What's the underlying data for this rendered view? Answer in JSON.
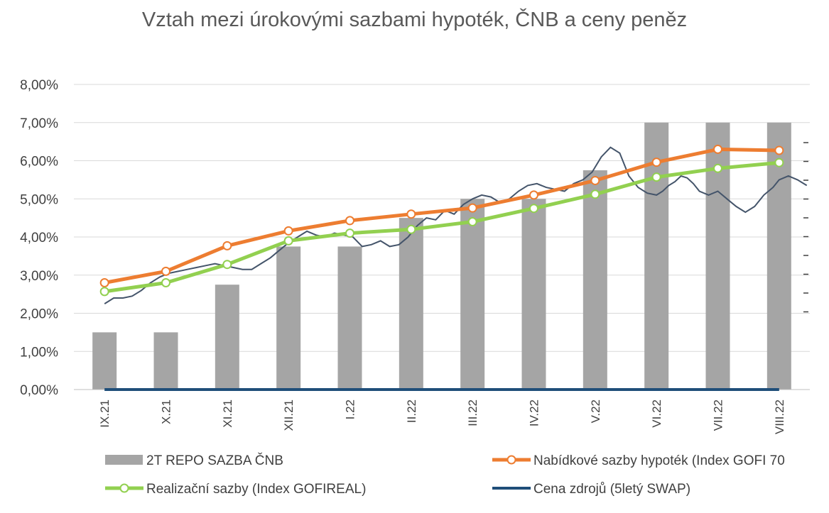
{
  "chart_data": {
    "type": "bar",
    "title": "Vztah mezi úrokovými sazbami hypoték, ČNB a ceny peněz",
    "categories": [
      "IX.21",
      "X.21",
      "XI.21",
      "XII.21",
      "I.22",
      "II.22",
      "III.22",
      "IV.22",
      "V.22",
      "VI.22",
      "VII.22",
      "VIII.22"
    ],
    "ylim": [
      0,
      8
    ],
    "yticks": [
      "0,00%",
      "1,00%",
      "2,00%",
      "3,00%",
      "4,00%",
      "5,00%",
      "6,00%",
      "7,00%",
      "8,00%"
    ],
    "grid": true,
    "legend_position": "bottom",
    "series": [
      {
        "name": "2T REPO SAZBA ČNB",
        "type": "bar",
        "color": "#a5a5a5",
        "values": [
          1.5,
          1.5,
          2.75,
          3.75,
          3.75,
          4.5,
          5.0,
          5.0,
          5.75,
          7.0,
          7.0,
          7.0
        ]
      },
      {
        "name": "Nabídkové sazby hypoték (Index GOFI 70",
        "type": "line",
        "color": "#ed7d31",
        "values": [
          2.8,
          3.1,
          3.77,
          4.16,
          4.43,
          4.6,
          4.76,
          5.1,
          5.48,
          5.96,
          6.3,
          6.27
        ]
      },
      {
        "name": "Realizační sazby (Index GOFIREAL)",
        "type": "line",
        "color": "#92d050",
        "values": [
          2.57,
          2.8,
          3.28,
          3.9,
          4.1,
          4.2,
          4.4,
          4.75,
          5.12,
          5.57,
          5.8,
          5.95
        ]
      },
      {
        "name": "Cena zdrojů (5letý SWAP)",
        "type": "line",
        "color": "#1f4e79",
        "values": [
          0,
          0,
          0,
          0,
          0,
          0,
          0,
          0,
          0,
          0,
          0,
          0
        ]
      },
      {
        "name": "",
        "type": "daily-line",
        "color": "#44546a",
        "x": [
          0,
          0.15,
          0.3,
          0.45,
          0.6,
          0.75,
          0.9,
          1.05,
          1.2,
          1.35,
          1.5,
          1.65,
          1.8,
          1.95,
          2.1,
          2.25,
          2.4,
          2.55,
          2.7,
          2.85,
          3.0,
          3.15,
          3.3,
          3.45,
          3.6,
          3.75,
          3.9,
          4.05,
          4.2,
          4.35,
          4.5,
          4.65,
          4.8,
          4.95,
          5.1,
          5.25,
          5.4,
          5.55,
          5.7,
          5.85,
          6.0,
          6.15,
          6.3,
          6.45,
          6.6,
          6.75,
          6.9,
          7.05,
          7.2,
          7.35,
          7.5,
          7.65,
          7.8,
          7.95,
          8.1,
          8.25,
          8.4,
          8.55,
          8.7,
          8.85,
          9.0,
          9.1,
          9.2,
          9.3,
          9.4,
          9.5,
          9.6,
          9.7,
          9.85,
          10.0,
          10.15,
          10.3,
          10.45,
          10.6,
          10.75,
          10.9,
          11.0,
          11.15,
          11.3,
          11.45
        ],
        "values": [
          2.25,
          2.4,
          2.4,
          2.45,
          2.6,
          2.8,
          2.95,
          3.05,
          3.1,
          3.15,
          3.2,
          3.25,
          3.3,
          3.25,
          3.2,
          3.15,
          3.15,
          3.3,
          3.45,
          3.65,
          3.85,
          4.0,
          4.15,
          4.05,
          4.0,
          4.1,
          4.05,
          4.0,
          3.75,
          3.8,
          3.9,
          3.75,
          3.8,
          4.0,
          4.3,
          4.5,
          4.45,
          4.7,
          4.6,
          4.85,
          5.0,
          5.1,
          5.05,
          4.9,
          5.0,
          5.2,
          5.35,
          5.4,
          5.3,
          5.25,
          5.2,
          5.4,
          5.5,
          5.7,
          6.1,
          6.35,
          6.2,
          5.6,
          5.3,
          5.15,
          5.1,
          5.2,
          5.35,
          5.45,
          5.6,
          5.55,
          5.4,
          5.2,
          5.1,
          5.2,
          5.0,
          4.8,
          4.65,
          4.8,
          5.1,
          5.3,
          5.5,
          5.6,
          5.5,
          5.35
        ]
      }
    ]
  }
}
